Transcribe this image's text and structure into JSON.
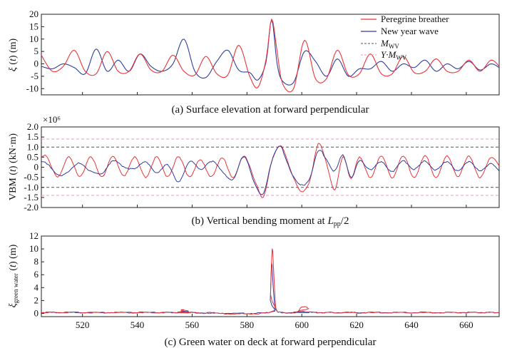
{
  "chart_data": [
    {
      "id": "a",
      "type": "line",
      "caption": "(a) Surface elevation at forward perpendicular",
      "ylabel": "ξ (t) (m)",
      "xlim": [
        505,
        672
      ],
      "ylim": [
        -12.5,
        20
      ],
      "yticks": [
        "-10",
        "-5",
        "0",
        "5",
        "10",
        "15",
        "20"
      ],
      "ytick_values": [
        -10,
        -5,
        0,
        5,
        10,
        15,
        20
      ],
      "show_xtick_labels": false,
      "legend": {
        "position": "top-right",
        "entries": [
          {
            "label": "Peregrine breather",
            "color": "#e8343a",
            "style": "solid"
          },
          {
            "label": "New year wave",
            "color": "#2f3f9e",
            "style": "solid"
          },
          {
            "label": "M_WV",
            "color": "#555555",
            "style": "dashed"
          },
          {
            "label": "Y·M_WV",
            "color": "#f29bb0",
            "style": "dashed"
          }
        ]
      },
      "series": [
        {
          "name": "Peregrine breather",
          "color": "#e8343a",
          "x": [
            505,
            509,
            513,
            517,
            521,
            525,
            529,
            533,
            537,
            541,
            545,
            549,
            553,
            557,
            561,
            565,
            569,
            573,
            577,
            581,
            584,
            587,
            589,
            591,
            593,
            597,
            601,
            605,
            609,
            613,
            617,
            621,
            625,
            629,
            633,
            637,
            641,
            645,
            649,
            653,
            657,
            661,
            665,
            669,
            672
          ],
          "values": [
            3.5,
            -3,
            -1,
            5.5,
            -3,
            -4,
            5,
            -3,
            -3,
            4,
            -2.5,
            -3,
            3.5,
            -3,
            -4.5,
            3,
            -4,
            -4.5,
            7.5,
            -5,
            -9.5,
            2,
            18,
            5,
            -8,
            -10,
            9.5,
            -6,
            -6,
            5.5,
            -4.5,
            -4,
            4,
            -4,
            -4,
            3,
            -3.5,
            -3,
            2,
            -3,
            -3,
            1.5,
            -3,
            1.5,
            -1
          ]
        },
        {
          "name": "New year wave",
          "color": "#2f3f9e",
          "x": [
            505,
            509,
            513,
            517,
            521,
            525,
            529,
            533,
            537,
            541,
            545,
            549,
            553,
            557,
            561,
            565,
            569,
            573,
            577,
            581,
            584,
            587,
            589,
            591,
            593,
            597,
            601,
            605,
            609,
            613,
            617,
            621,
            625,
            629,
            633,
            637,
            641,
            645,
            649,
            653,
            657,
            661,
            665,
            669,
            672
          ],
          "values": [
            -1,
            -2,
            0,
            -1.5,
            -4,
            6,
            -3,
            1.5,
            -3,
            4,
            -1,
            -3,
            0,
            10,
            -3,
            -5.5,
            1,
            5.5,
            -2.5,
            -3.5,
            -6.5,
            1,
            18,
            0,
            -7,
            -7.5,
            5,
            1,
            -5,
            2,
            -5,
            -2,
            -2,
            1,
            -3,
            0,
            -1.5,
            1.5,
            -3,
            0,
            -2,
            1,
            -2.5,
            0,
            -1.5
          ]
        }
      ]
    },
    {
      "id": "b",
      "type": "line",
      "caption": "(b) Vertical bending moment at L_pp/2",
      "ylabel": "VBM (t) (kN·m)",
      "multiplier_label": "×10⁶",
      "xlim": [
        505,
        672
      ],
      "ylim": [
        -2.0,
        2.0
      ],
      "yticks": [
        "-2.0",
        "-1.5",
        "-1.0",
        "-0.5",
        "0",
        "0.5",
        "1.0",
        "1.5",
        "2.0"
      ],
      "ytick_values": [
        -2.0,
        -1.5,
        -1.0,
        -0.5,
        0,
        0.5,
        1.0,
        1.5,
        2.0
      ],
      "show_xtick_labels": false,
      "reference_lines": [
        {
          "name": "M_WV",
          "values": [
            1.0,
            -1.0
          ],
          "color": "#555555"
        },
        {
          "name": "Y·M_WV",
          "values": [
            1.4,
            -1.4
          ],
          "color": "#f29bb0"
        }
      ],
      "series": [
        {
          "name": "Peregrine breather",
          "color": "#e8343a",
          "x": [
            505,
            507,
            511,
            515,
            519,
            523,
            527,
            531,
            535,
            539,
            543,
            547,
            551,
            555,
            559,
            563,
            567,
            571,
            575,
            579,
            583,
            586,
            589,
            592,
            594,
            597,
            600,
            603,
            606,
            609,
            612,
            615,
            618,
            621,
            625,
            629,
            633,
            637,
            641,
            645,
            649,
            653,
            657,
            661,
            665,
            669,
            672
          ],
          "values": [
            0.5,
            0.55,
            -0.5,
            0.55,
            -0.5,
            0.55,
            -0.5,
            0.55,
            -0.45,
            0.5,
            -0.5,
            0.5,
            -0.45,
            0.5,
            -0.45,
            0.35,
            -0.45,
            0.45,
            -0.5,
            0.55,
            -0.7,
            -1.5,
            0.3,
            1.05,
            0.6,
            -0.5,
            -1.25,
            -0.6,
            1.15,
            0.2,
            -1.1,
            0.5,
            -0.55,
            0.5,
            -0.5,
            0.55,
            -0.5,
            0.55,
            -0.5,
            0.55,
            -0.5,
            0.55,
            -0.45,
            0.55,
            -0.5,
            0.5,
            0.1
          ]
        },
        {
          "name": "New year wave",
          "color": "#2f3f9e",
          "x": [
            505,
            507,
            511,
            515,
            519,
            523,
            527,
            531,
            535,
            539,
            543,
            547,
            551,
            555,
            559,
            563,
            567,
            571,
            575,
            579,
            583,
            586,
            589,
            592,
            594,
            597,
            600,
            603,
            606,
            609,
            612,
            615,
            618,
            621,
            625,
            629,
            633,
            637,
            641,
            645,
            649,
            653,
            657,
            661,
            665,
            669,
            672
          ],
          "values": [
            0.3,
            0.2,
            -0.4,
            -0.2,
            0.2,
            -0.2,
            -0.3,
            0.3,
            0.05,
            -0.1,
            0.3,
            -0.3,
            0.15,
            -0.75,
            0.3,
            -0.1,
            0.3,
            -0.2,
            -0.6,
            0.55,
            -0.9,
            -1.3,
            0.3,
            1.05,
            0.5,
            -0.5,
            -0.9,
            -0.5,
            0.8,
            0.4,
            -0.2,
            0.6,
            -0.5,
            0.3,
            -0.1,
            0.25,
            -0.2,
            0.3,
            -0.1,
            0.3,
            -0.15,
            0.3,
            -0.2,
            0.3,
            -0.2,
            0.2,
            -0.2
          ]
        }
      ]
    },
    {
      "id": "c",
      "type": "line",
      "caption": "(c) Green water on deck at forward perpendicular",
      "ylabel": "ξ_green water (t) (m)",
      "xlim": [
        505,
        672
      ],
      "ylim": [
        -0.5,
        12
      ],
      "yticks": [
        "0",
        "2",
        "4",
        "6",
        "8",
        "10",
        "12"
      ],
      "ytick_values": [
        0,
        2,
        4,
        6,
        8,
        10,
        12
      ],
      "xticks": [
        "520",
        "540",
        "560",
        "580",
        "600",
        "620",
        "640",
        "660"
      ],
      "xtick_values": [
        520,
        540,
        560,
        580,
        600,
        620,
        640,
        660
      ],
      "series": [
        {
          "name": "Peregrine breather",
          "color": "#e8343a",
          "x": [
            505,
            555,
            556,
            557,
            558,
            588,
            588.6,
            589.2,
            589.8,
            590.4,
            591,
            592,
            598,
            599.5,
            601,
            602.5,
            604,
            672
          ],
          "values": [
            0.15,
            0.15,
            0.5,
            0.5,
            0.15,
            0.15,
            3,
            10,
            6,
            1.5,
            0.4,
            0.15,
            0.15,
            0.8,
            1.1,
            0.8,
            0.15,
            0.15
          ]
        },
        {
          "name": "New year wave",
          "color": "#2f3f9e",
          "x": [
            505,
            555,
            556,
            557,
            558,
            588,
            588.5,
            589,
            589.6,
            590.2,
            591,
            592,
            599,
            601,
            602,
            672
          ],
          "values": [
            0.15,
            0.15,
            0.35,
            0.35,
            0.15,
            0.15,
            2,
            7.8,
            4,
            1,
            0.3,
            0.15,
            0.15,
            0.35,
            0.15,
            0.15
          ]
        }
      ]
    }
  ]
}
